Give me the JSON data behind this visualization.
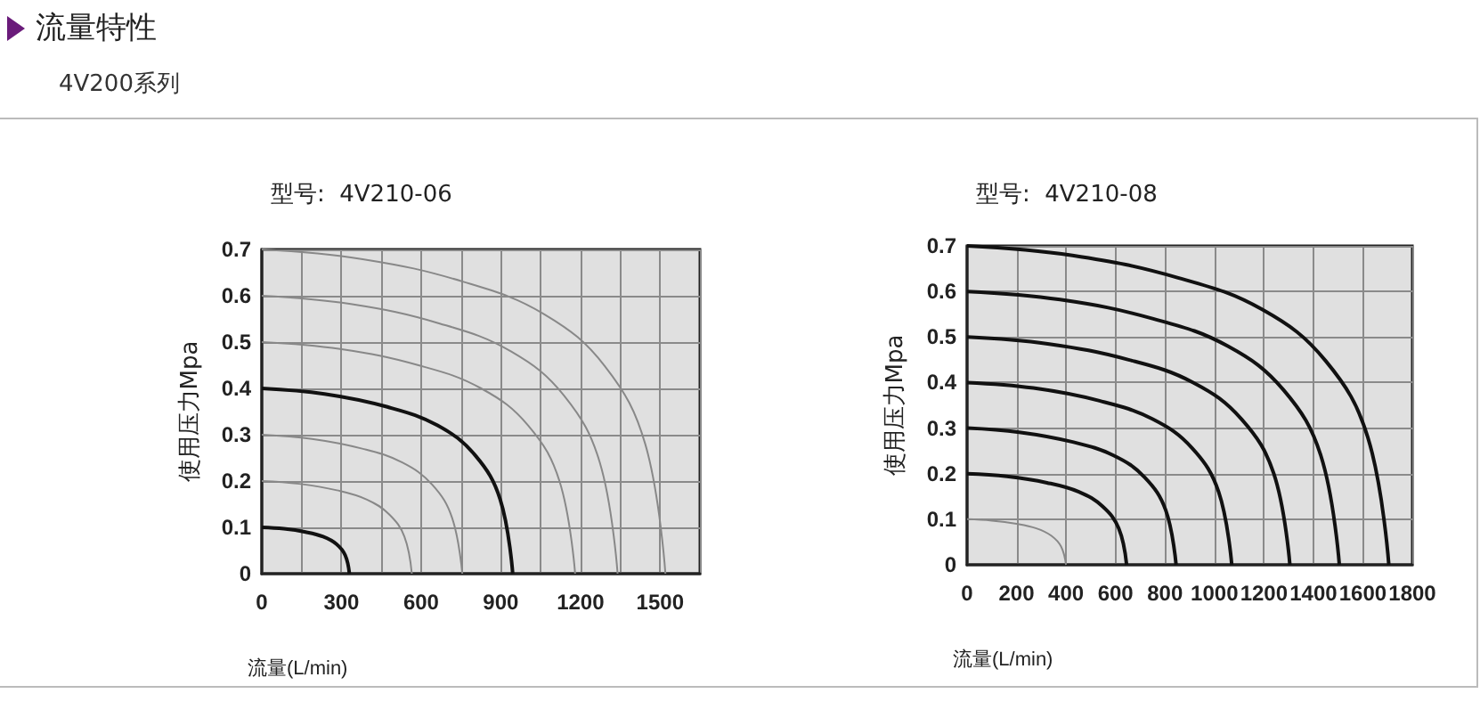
{
  "chart_data": [
    {
      "type": "line",
      "title": "型号:  4V210-06",
      "xlabel": "流量(L/min)",
      "ylabel": "使用压力Mpa",
      "annotations": [
        "流量特性",
        "4V200系列"
      ],
      "xlim": [
        0,
        1650
      ],
      "xticks": [
        0,
        {
          "value": 150,
          "label": null
        },
        300,
        {
          "value": 450,
          "label": null
        },
        600,
        {
          "value": 750,
          "label": null
        },
        900,
        {
          "value": 1050,
          "label": null
        },
        1200,
        {
          "value": 1350,
          "label": null
        },
        1500,
        {
          "value": 1650,
          "label": null
        }
      ],
      "ylim": [
        0,
        0.7
      ],
      "yticks": [
        0,
        0.1,
        0.2,
        0.3,
        0.4,
        0.5,
        0.6,
        0.7
      ],
      "grid": true,
      "marker": "none",
      "line_style": "solid",
      "series": [
        {
          "color": "#111111",
          "x": [
            0,
            83,
            165,
            231,
            281,
            314,
            330
          ],
          "values": [
            0.1,
            0.097,
            0.09,
            0.08,
            0.064,
            0.04,
            0
          ]
        },
        {
          "color": "#888888",
          "x": [
            0,
            141,
            283,
            396,
            480,
            537,
            565
          ],
          "values": [
            0.2,
            0.194,
            0.18,
            0.16,
            0.128,
            0.08,
            0
          ]
        },
        {
          "color": "#888888",
          "x": [
            0,
            189,
            378,
            529,
            642,
            717,
            755
          ],
          "values": [
            0.3,
            0.291,
            0.27,
            0.24,
            0.192,
            0.12,
            0
          ]
        },
        {
          "color": "#111111",
          "x": [
            0,
            236,
            473,
            662,
            803,
            898,
            945
          ],
          "values": [
            0.4,
            0.388,
            0.36,
            0.32,
            0.256,
            0.16,
            0
          ]
        },
        {
          "color": "#888888",
          "x": [
            0,
            295,
            590,
            826,
            1003,
            1121,
            1180
          ],
          "values": [
            0.5,
            0.485,
            0.45,
            0.4,
            0.32,
            0.2,
            0
          ]
        },
        {
          "color": "#888888",
          "x": [
            0,
            335,
            670,
            938,
            1139,
            1273,
            1340
          ],
          "values": [
            0.6,
            0.582,
            0.54,
            0.48,
            0.384,
            0.24,
            0
          ]
        },
        {
          "color": "#888888",
          "x": [
            0,
            380,
            760,
            1064,
            1292,
            1444,
            1520
          ],
          "values": [
            0.7,
            0.679,
            0.63,
            0.56,
            0.448,
            0.28,
            0
          ]
        }
      ]
    },
    {
      "type": "line",
      "title": "型号:  4V210-08",
      "xlabel": "流量(L/min)",
      "ylabel": "使用压力Mpa",
      "xlim": [
        0,
        1800
      ],
      "xticks": [
        0,
        200,
        400,
        600,
        800,
        1000,
        1200,
        1400,
        1600,
        1800
      ],
      "ylim": [
        0,
        0.7
      ],
      "yticks": [
        0,
        0.1,
        0.2,
        0.3,
        0.4,
        0.5,
        0.6,
        0.7
      ],
      "grid": true,
      "marker": "none",
      "line_style": "solid",
      "series": [
        {
          "color": "#888888",
          "x": [
            0,
            100,
            200,
            280,
            340,
            380,
            400
          ],
          "values": [
            0.1,
            0.097,
            0.09,
            0.08,
            0.064,
            0.04,
            0
          ]
        },
        {
          "color": "#111111",
          "x": [
            0,
            161,
            323,
            452,
            548,
            613,
            645
          ],
          "values": [
            0.2,
            0.194,
            0.18,
            0.16,
            0.128,
            0.08,
            0
          ]
        },
        {
          "color": "#111111",
          "x": [
            0,
            211,
            423,
            592,
            718,
            803,
            845
          ],
          "values": [
            0.3,
            0.291,
            0.27,
            0.24,
            0.192,
            0.12,
            0
          ]
        },
        {
          "color": "#111111",
          "x": [
            0,
            268,
            535,
            749,
            910,
            1017,
            1070
          ],
          "values": [
            0.4,
            0.388,
            0.36,
            0.32,
            0.256,
            0.16,
            0
          ]
        },
        {
          "color": "#111111",
          "x": [
            0,
            326,
            653,
            914,
            1109,
            1240,
            1305
          ],
          "values": [
            0.5,
            0.485,
            0.45,
            0.4,
            0.32,
            0.2,
            0
          ]
        },
        {
          "color": "#111111",
          "x": [
            0,
            376,
            753,
            1054,
            1279,
            1430,
            1505
          ],
          "values": [
            0.6,
            0.582,
            0.54,
            0.48,
            0.384,
            0.24,
            0
          ]
        },
        {
          "color": "#111111",
          "x": [
            0,
            426,
            853,
            1194,
            1449,
            1620,
            1705
          ],
          "values": [
            0.7,
            0.679,
            0.63,
            0.56,
            0.448,
            0.28,
            0
          ]
        }
      ]
    }
  ]
}
